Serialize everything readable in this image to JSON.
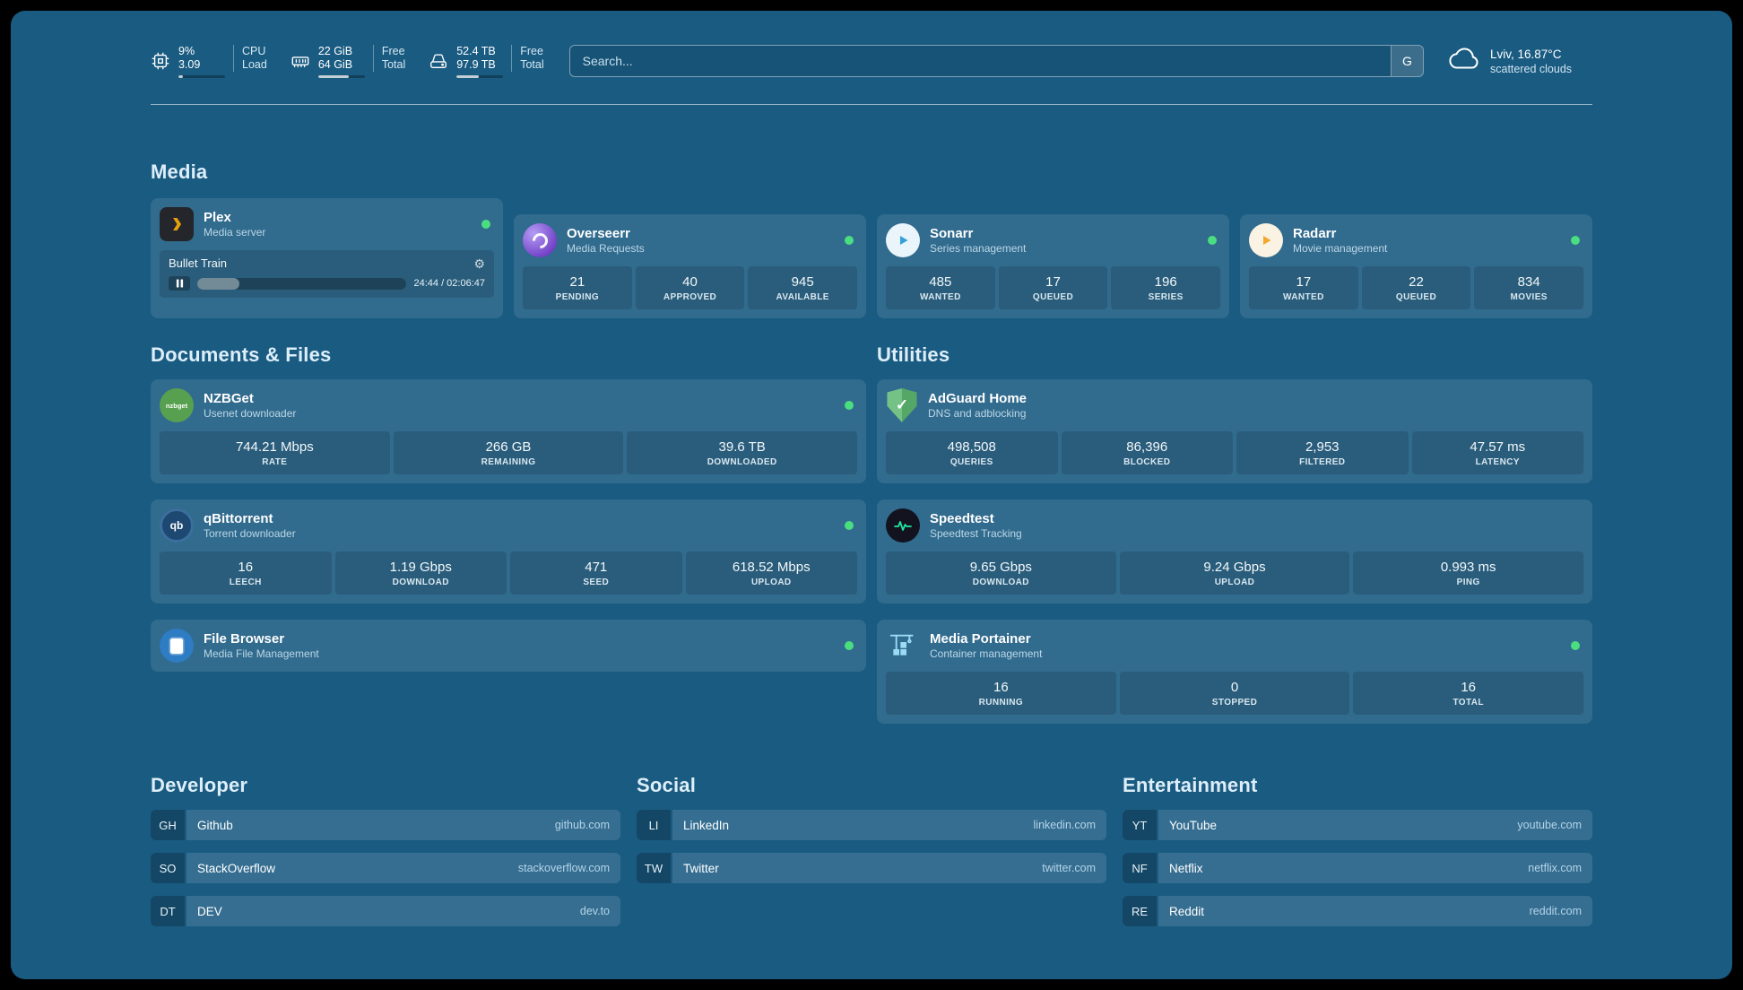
{
  "topbar": {
    "cpu": {
      "value": "9%",
      "sub": "3.09",
      "label_top": "CPU",
      "label_bottom": "Load",
      "bar_percent": 9
    },
    "memory": {
      "value": "22 GiB",
      "sub": "64 GiB",
      "label_top": "Free",
      "label_bottom": "Total",
      "bar_percent": 66
    },
    "disk": {
      "value": "52.4 TB",
      "sub": "97.9 TB",
      "label_top": "Free",
      "label_bottom": "Total",
      "bar_percent": 47
    },
    "search": {
      "placeholder": "Search...",
      "button_label": "G"
    },
    "weather": {
      "location": "Lviv, 16.87°C",
      "condition": "scattered clouds"
    }
  },
  "sections": {
    "media": "Media",
    "documents": "Documents & Files",
    "utilities": "Utilities",
    "developer": "Developer",
    "social": "Social",
    "entertainment": "Entertainment"
  },
  "services": {
    "plex": {
      "name": "Plex",
      "desc": "Media server",
      "now_playing": "Bullet Train",
      "time": "24:44 / 02:06:47",
      "progress_percent": 20
    },
    "overseerr": {
      "name": "Overseerr",
      "desc": "Media Requests",
      "stats": [
        {
          "value": "21",
          "label": "PENDING"
        },
        {
          "value": "40",
          "label": "APPROVED"
        },
        {
          "value": "945",
          "label": "AVAILABLE"
        }
      ]
    },
    "sonarr": {
      "name": "Sonarr",
      "desc": "Series management",
      "stats": [
        {
          "value": "485",
          "label": "WANTED"
        },
        {
          "value": "17",
          "label": "QUEUED"
        },
        {
          "value": "196",
          "label": "SERIES"
        }
      ]
    },
    "radarr": {
      "name": "Radarr",
      "desc": "Movie management",
      "stats": [
        {
          "value": "17",
          "label": "WANTED"
        },
        {
          "value": "22",
          "label": "QUEUED"
        },
        {
          "value": "834",
          "label": "MOVIES"
        }
      ]
    },
    "nzbget": {
      "name": "NZBGet",
      "desc": "Usenet downloader",
      "icon_text": "nzbget",
      "stats": [
        {
          "value": "744.21 Mbps",
          "label": "RATE"
        },
        {
          "value": "266 GB",
          "label": "REMAINING"
        },
        {
          "value": "39.6 TB",
          "label": "DOWNLOADED"
        }
      ]
    },
    "qbittorrent": {
      "name": "qBittorrent",
      "desc": "Torrent downloader",
      "icon_text": "qb",
      "stats": [
        {
          "value": "16",
          "label": "LEECH"
        },
        {
          "value": "1.19 Gbps",
          "label": "DOWNLOAD"
        },
        {
          "value": "471",
          "label": "SEED"
        },
        {
          "value": "618.52 Mbps",
          "label": "UPLOAD"
        }
      ]
    },
    "filebrowser": {
      "name": "File Browser",
      "desc": "Media File Management"
    },
    "adguard": {
      "name": "AdGuard Home",
      "desc": "DNS and adblocking",
      "icon_glyph": "✓",
      "stats": [
        {
          "value": "498,508",
          "label": "QUERIES"
        },
        {
          "value": "86,396",
          "label": "BLOCKED"
        },
        {
          "value": "2,953",
          "label": "FILTERED"
        },
        {
          "value": "47.57 ms",
          "label": "LATENCY"
        }
      ]
    },
    "speedtest": {
      "name": "Speedtest",
      "desc": "Speedtest Tracking",
      "stats": [
        {
          "value": "9.65 Gbps",
          "label": "DOWNLOAD"
        },
        {
          "value": "9.24 Gbps",
          "label": "UPLOAD"
        },
        {
          "value": "0.993 ms",
          "label": "PING"
        }
      ]
    },
    "portainer": {
      "name": "Media Portainer",
      "desc": "Container management",
      "stats": [
        {
          "value": "16",
          "label": "RUNNING"
        },
        {
          "value": "0",
          "label": "STOPPED"
        },
        {
          "value": "16",
          "label": "TOTAL"
        }
      ]
    }
  },
  "bookmarks": {
    "developer": [
      {
        "abbr": "GH",
        "name": "Github",
        "url": "github.com"
      },
      {
        "abbr": "SO",
        "name": "StackOverflow",
        "url": "stackoverflow.com"
      },
      {
        "abbr": "DT",
        "name": "DEV",
        "url": "dev.to"
      }
    ],
    "social": [
      {
        "abbr": "LI",
        "name": "LinkedIn",
        "url": "linkedin.com"
      },
      {
        "abbr": "TW",
        "name": "Twitter",
        "url": "twitter.com"
      }
    ],
    "entertainment": [
      {
        "abbr": "YT",
        "name": "YouTube",
        "url": "youtube.com"
      },
      {
        "abbr": "NF",
        "name": "Netflix",
        "url": "netflix.com"
      },
      {
        "abbr": "RE",
        "name": "Reddit",
        "url": "reddit.com"
      }
    ]
  },
  "colors": {
    "status_online": "#4ade80",
    "accent_pulse": "#21e6a1"
  }
}
